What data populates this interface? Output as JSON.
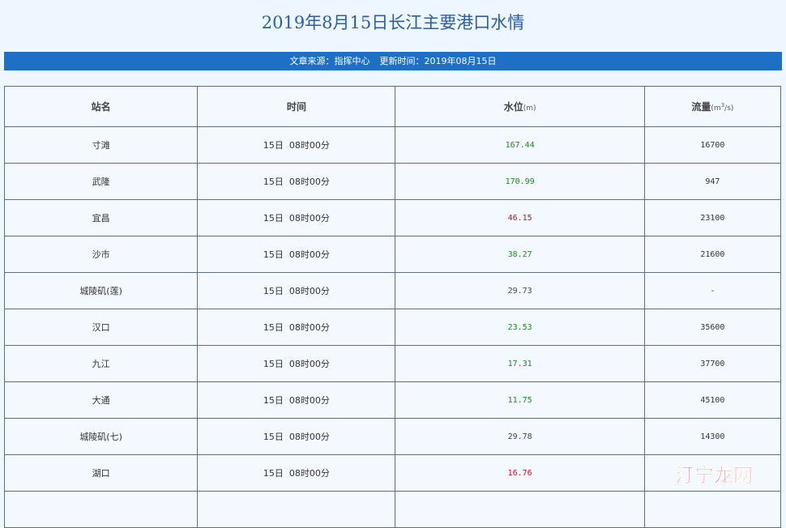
{
  "title": "2019年8月15日长江主要港口水情",
  "meta": {
    "source_label": "文章来源：",
    "source_value": "指挥中心",
    "updated_label": "更新时间：",
    "updated_value": "2019年08月15日"
  },
  "table": {
    "headers": {
      "station": "站名",
      "time": "时间",
      "level": "水位",
      "level_unit": "(m)",
      "flow": "流量",
      "flow_unit_prefix": "(m",
      "flow_unit_exp": "3",
      "flow_unit_suffix": "/s)"
    },
    "rows": [
      {
        "station": "寸滩",
        "time": "15日  08时00分",
        "level": "167.44",
        "level_color": "#1a8a1a",
        "flow": "16700"
      },
      {
        "station": "武隆",
        "time": "15日  08时00分",
        "level": "170.99",
        "level_color": "#1a8a1a",
        "flow": "947"
      },
      {
        "station": "宜昌",
        "time": "15日  08时00分",
        "level": "46.15",
        "level_color": "#c8101a",
        "flow": "23100"
      },
      {
        "station": "沙市",
        "time": "15日  08时00分",
        "level": "38.27",
        "level_color": "#1a8a1a",
        "flow": "21600"
      },
      {
        "station": "城陵矶(莲)",
        "time": "15日  08时00分",
        "level": "29.73",
        "level_color": "#444444",
        "flow": "-"
      },
      {
        "station": "汉口",
        "time": "15日  08时00分",
        "level": "23.53",
        "level_color": "#1a8a1a",
        "flow": "35600"
      },
      {
        "station": "九江",
        "time": "15日  08时00分",
        "level": "17.31",
        "level_color": "#1a8a1a",
        "flow": "37700"
      },
      {
        "station": "大通",
        "time": "15日  08时00分",
        "level": "11.75",
        "level_color": "#1a8a1a",
        "flow": "45100"
      },
      {
        "station": "城陵矶(七)",
        "time": "15日  08时00分",
        "level": "29.78",
        "level_color": "#444444",
        "flow": "14300"
      },
      {
        "station": "湖口",
        "time": "15日  08时00分",
        "level": "16.76",
        "level_color": "#c8101a",
        "flow": ""
      },
      {
        "station": "",
        "time": "",
        "level": "",
        "level_color": "#444444",
        "flow": ""
      }
    ]
  },
  "watermark": {
    "text": "汀宁龙网",
    "icon": "logo-watermark-icon",
    "color_red": "#d8231c",
    "color_dark": "#2b2b2b"
  }
}
